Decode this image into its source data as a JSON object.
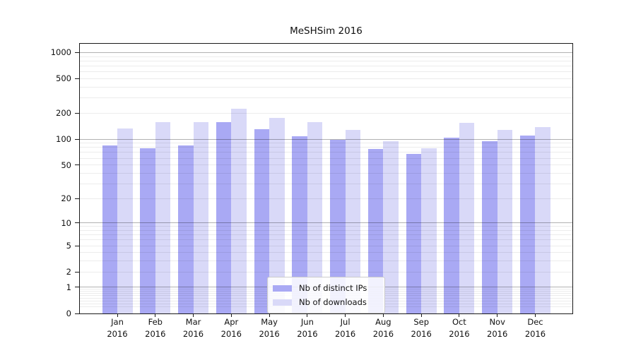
{
  "chart_data": {
    "type": "bar",
    "title": "MeSHSim 2016",
    "x_categories": [
      "Jan",
      "Feb",
      "Mar",
      "Apr",
      "May",
      "Jun",
      "Jul",
      "Aug",
      "Sep",
      "Oct",
      "Nov",
      "Dec"
    ],
    "x_year_label": "2016",
    "series": [
      {
        "name": "Nb of distinct IPs",
        "color": "#a9a9f4",
        "values": [
          85,
          78,
          85,
          157,
          130,
          108,
          99,
          77,
          67,
          105,
          95,
          110
        ]
      },
      {
        "name": "Nb of downloads",
        "color": "#d9d9f8",
        "values": [
          132,
          157,
          157,
          225,
          175,
          158,
          129,
          95,
          79,
          155,
          129,
          139
        ]
      }
    ],
    "y_axis": {
      "scale": "log1p",
      "tick_values": [
        1000,
        500,
        200,
        100,
        50,
        20,
        10,
        5,
        2,
        1,
        0
      ],
      "tick_labels": [
        "1000",
        "500",
        "200",
        "100",
        "50",
        "20",
        "10",
        "5",
        "2",
        "1",
        "0"
      ]
    },
    "grid": {
      "major_values": [
        1,
        10,
        100,
        1000
      ],
      "minor_bases": [
        0.1,
        1,
        10,
        100
      ]
    },
    "legend_position": "lower center",
    "ylim_top_value": 1255
  }
}
